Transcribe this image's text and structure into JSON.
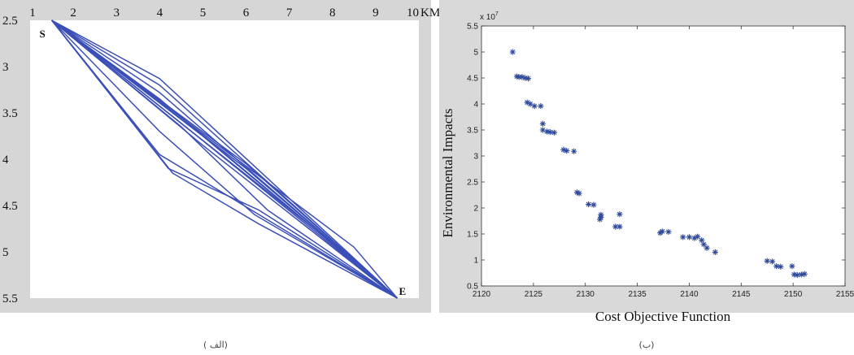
{
  "chart_data": [
    {
      "type": "line",
      "panel_caption": "( الف)",
      "x_unit": "KM",
      "xticks": [
        1,
        2,
        3,
        4,
        5,
        6,
        7,
        8,
        9,
        10
      ],
      "yticks": [
        2.5,
        3,
        3.5,
        4,
        4.5,
        5,
        5.5
      ],
      "xlim": [
        1,
        10
      ],
      "ylim": [
        2.5,
        5.5
      ],
      "y_inverted": true,
      "start_label": "S",
      "end_label": "E",
      "start_point": [
        1.5,
        2.5
      ],
      "end_point": [
        9.5,
        5.5
      ],
      "color": "#3b4fb8",
      "series": [
        {
          "x": [
            1.5,
            4.0,
            9.5
          ],
          "y": [
            2.5,
            3.13,
            5.5
          ]
        },
        {
          "x": [
            1.5,
            4.0,
            9.5
          ],
          "y": [
            2.5,
            3.2,
            5.5
          ]
        },
        {
          "x": [
            1.5,
            4.0,
            9.5
          ],
          "y": [
            2.5,
            3.28,
            5.5
          ]
        },
        {
          "x": [
            1.5,
            4.0,
            9.5
          ],
          "y": [
            2.5,
            3.35,
            5.5
          ]
        },
        {
          "x": [
            1.5,
            5.0,
            9.5
          ],
          "y": [
            2.5,
            3.75,
            5.5
          ]
        },
        {
          "x": [
            1.5,
            5.0,
            9.5
          ],
          "y": [
            2.5,
            3.8,
            5.5
          ]
        },
        {
          "x": [
            1.5,
            5.0,
            9.5
          ],
          "y": [
            2.5,
            3.85,
            5.5
          ]
        },
        {
          "x": [
            1.5,
            6.0,
            9.5
          ],
          "y": [
            2.5,
            4.05,
            5.5
          ]
        },
        {
          "x": [
            1.5,
            6.0,
            9.5
          ],
          "y": [
            2.5,
            4.1,
            5.5
          ]
        },
        {
          "x": [
            1.5,
            4.0,
            9.5
          ],
          "y": [
            2.5,
            3.95,
            5.5
          ]
        },
        {
          "x": [
            1.5,
            4.2,
            6.3,
            9.5
          ],
          "y": [
            2.5,
            4.1,
            4.55,
            5.5
          ]
        },
        {
          "x": [
            1.5,
            4.3,
            6.3,
            9.5
          ],
          "y": [
            2.5,
            4.15,
            4.7,
            5.5
          ]
        },
        {
          "x": [
            1.5,
            4.0,
            6.2,
            9.5
          ],
          "y": [
            2.5,
            3.7,
            4.6,
            5.5
          ]
        },
        {
          "x": [
            1.5,
            4.5,
            6.5,
            9.5
          ],
          "y": [
            2.5,
            3.65,
            4.55,
            5.5
          ]
        },
        {
          "x": [
            1.5,
            8.5,
            9.5
          ],
          "y": [
            2.5,
            4.95,
            5.5
          ]
        },
        {
          "x": [
            1.5,
            8.3,
            9.5
          ],
          "y": [
            2.5,
            5.02,
            5.5
          ]
        }
      ]
    },
    {
      "type": "scatter",
      "panel_caption": "(ب)",
      "xlabel": "Cost Objective Function",
      "ylabel": "Environmental Impacts",
      "y_multiplier": "x 10",
      "y_exponent": "7",
      "xlim": [
        2120,
        2155
      ],
      "ylim": [
        0.5,
        5.5
      ],
      "xticks": [
        2120,
        2125,
        2130,
        2135,
        2140,
        2145,
        2150,
        2155
      ],
      "yticks": [
        0.5,
        1,
        1.5,
        2,
        2.5,
        3,
        3.5,
        4,
        4.5,
        5,
        5.5
      ],
      "marker": "*",
      "color": "#2f4a9c",
      "points": [
        [
          2123.0,
          5.0
        ],
        [
          2123.4,
          4.53
        ],
        [
          2123.6,
          4.52
        ],
        [
          2123.9,
          4.52
        ],
        [
          2124.2,
          4.5
        ],
        [
          2124.5,
          4.49
        ],
        [
          2124.4,
          4.03
        ],
        [
          2124.7,
          4.0
        ],
        [
          2125.1,
          3.96
        ],
        [
          2125.7,
          3.96
        ],
        [
          2125.9,
          3.62
        ],
        [
          2125.9,
          3.5
        ],
        [
          2126.3,
          3.47
        ],
        [
          2126.6,
          3.46
        ],
        [
          2127.0,
          3.45
        ],
        [
          2127.9,
          3.12
        ],
        [
          2128.2,
          3.1
        ],
        [
          2128.9,
          3.09
        ],
        [
          2129.2,
          2.3
        ],
        [
          2129.4,
          2.28
        ],
        [
          2130.3,
          2.07
        ],
        [
          2130.8,
          2.06
        ],
        [
          2131.4,
          1.78
        ],
        [
          2131.5,
          1.87
        ],
        [
          2131.5,
          1.82
        ],
        [
          2132.9,
          1.64
        ],
        [
          2133.3,
          1.64
        ],
        [
          2133.3,
          1.88
        ],
        [
          2137.2,
          1.52
        ],
        [
          2137.4,
          1.55
        ],
        [
          2138.0,
          1.54
        ],
        [
          2139.4,
          1.44
        ],
        [
          2140.0,
          1.44
        ],
        [
          2140.5,
          1.42
        ],
        [
          2140.8,
          1.45
        ],
        [
          2141.2,
          1.38
        ],
        [
          2141.4,
          1.3
        ],
        [
          2141.7,
          1.23
        ],
        [
          2142.5,
          1.15
        ],
        [
          2147.5,
          0.98
        ],
        [
          2148.0,
          0.97
        ],
        [
          2148.4,
          0.88
        ],
        [
          2148.8,
          0.87
        ],
        [
          2149.9,
          0.88
        ],
        [
          2150.1,
          0.72
        ],
        [
          2150.4,
          0.71
        ],
        [
          2150.8,
          0.72
        ],
        [
          2151.1,
          0.73
        ]
      ]
    }
  ]
}
